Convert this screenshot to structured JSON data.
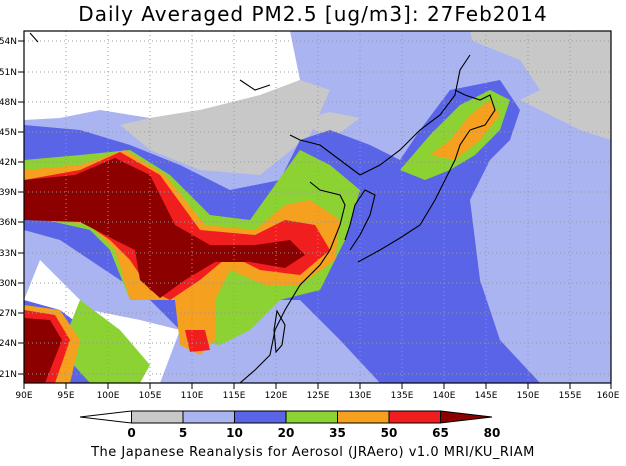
{
  "title": "Daily Averaged PM2.5 [ug/m3]: 27Feb2014",
  "footer": "The Japanese Reanalysis for Aerosol (JRAero) v1.0 MRI/KU_RIAM",
  "map": {
    "lon_range": [
      90,
      160
    ],
    "lat_range": [
      20,
      55
    ],
    "lon_ticks": [
      "90E",
      "95E",
      "100E",
      "105E",
      "110E",
      "115E",
      "120E",
      "125E",
      "130E",
      "135E",
      "140E",
      "145E",
      "150E",
      "155E",
      "160E"
    ],
    "lat_ticks": [
      "21N",
      "24N",
      "27N",
      "30N",
      "33N",
      "36N",
      "39N",
      "42N",
      "45N",
      "48N",
      "51N",
      "54N"
    ],
    "grid": true
  },
  "colorbar": {
    "levels": [
      "0",
      "5",
      "10",
      "20",
      "35",
      "50",
      "65",
      "80"
    ],
    "colors": [
      "#ffffff",
      "#c8c8c8",
      "#aab4f0",
      "#5a64e6",
      "#8cd232",
      "#f5a01e",
      "#f01e1e",
      "#8c0000"
    ]
  }
}
